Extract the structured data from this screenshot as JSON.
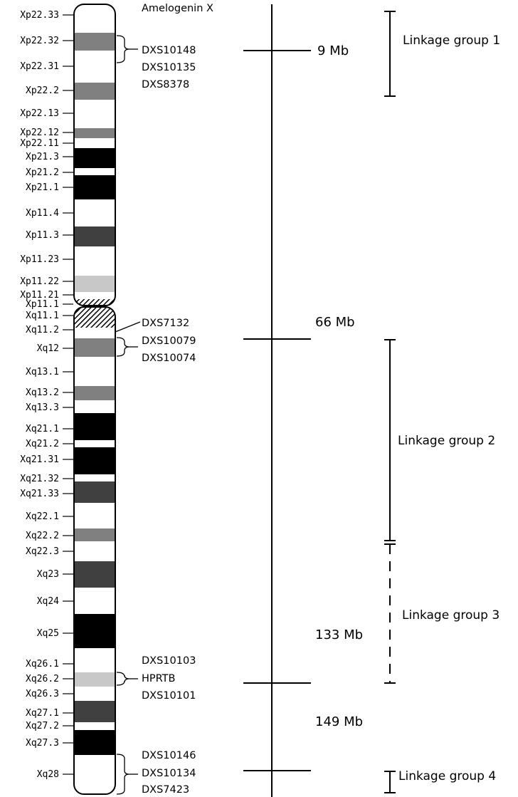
{
  "colors": {
    "white": "#ffffff",
    "gray": "#808080",
    "lightgray": "#c8c8c8",
    "darkgray": "#404040",
    "black": "#000000"
  },
  "chromosome": {
    "bands": [
      {
        "label": "Xp22.33",
        "stain": "white"
      },
      {
        "label": "Xp22.32",
        "stain": "gray"
      },
      {
        "label": "Xp22.31",
        "stain": "white"
      },
      {
        "label": "Xp22.2",
        "stain": "gray"
      },
      {
        "label": "Xp22.13",
        "stain": "white"
      },
      {
        "label": "Xp22.12",
        "stain": "gray"
      },
      {
        "label": "Xp22.11",
        "stain": "white"
      },
      {
        "label": "Xp21.3",
        "stain": "black"
      },
      {
        "label": "Xp21.2",
        "stain": "white"
      },
      {
        "label": "Xp21.1",
        "stain": "black"
      },
      {
        "label": "Xp11.4",
        "stain": "white"
      },
      {
        "label": "Xp11.3",
        "stain": "darkgray"
      },
      {
        "label": "Xp11.23",
        "stain": "white"
      },
      {
        "label": "Xp11.22",
        "stain": "lightgray"
      },
      {
        "label": "Xp11.21",
        "stain": "white"
      },
      {
        "label": "Xp11.1",
        "stain": "hatch"
      },
      {
        "label": "Xq11.1",
        "stain": "hatch"
      },
      {
        "label": "Xq11.2",
        "stain": "white"
      },
      {
        "label": "Xq12",
        "stain": "gray"
      },
      {
        "label": "Xq13.1",
        "stain": "white"
      },
      {
        "label": "Xq13.2",
        "stain": "gray"
      },
      {
        "label": "Xq13.3",
        "stain": "white"
      },
      {
        "label": "Xq21.1",
        "stain": "black"
      },
      {
        "label": "Xq21.2",
        "stain": "white"
      },
      {
        "label": "Xq21.31",
        "stain": "black"
      },
      {
        "label": "Xq21.32",
        "stain": "white"
      },
      {
        "label": "Xq21.33",
        "stain": "darkgray"
      },
      {
        "label": "Xq22.1",
        "stain": "white"
      },
      {
        "label": "Xq22.2",
        "stain": "gray"
      },
      {
        "label": "Xq22.3",
        "stain": "white"
      },
      {
        "label": "Xq23",
        "stain": "darkgray"
      },
      {
        "label": "Xq24",
        "stain": "white"
      },
      {
        "label": "Xq25",
        "stain": "black"
      },
      {
        "label": "Xq26.1",
        "stain": "white"
      },
      {
        "label": "Xq26.2",
        "stain": "lightgray"
      },
      {
        "label": "Xq26.3",
        "stain": "white"
      },
      {
        "label": "Xq27.1",
        "stain": "darkgray"
      },
      {
        "label": "Xq27.2",
        "stain": "white"
      },
      {
        "label": "Xq27.3",
        "stain": "black"
      },
      {
        "label": "Xq28",
        "stain": "white"
      }
    ]
  },
  "markers": [
    {
      "label": "Amelogenin X"
    },
    {
      "label": "DXS10148"
    },
    {
      "label": "DXS10135"
    },
    {
      "label": "DXS8378"
    },
    {
      "label": "DXS7132"
    },
    {
      "label": "DXS10079"
    },
    {
      "label": "DXS10074"
    },
    {
      "label": "DXS10103"
    },
    {
      "label": "HPRTB"
    },
    {
      "label": "DXS10101"
    },
    {
      "label": "DXS10146"
    },
    {
      "label": "DXS10134"
    },
    {
      "label": "DXS7423"
    }
  ],
  "positions": [
    {
      "label": "9 Mb"
    },
    {
      "label": "66 Mb"
    },
    {
      "label": "133 Mb"
    },
    {
      "label": "149 Mb"
    }
  ],
  "linkage_groups": [
    {
      "label": "Linkage group 1",
      "line": "solid"
    },
    {
      "label": "Linkage group 2",
      "line": "solid"
    },
    {
      "label": "Linkage group 3",
      "line": "dashed"
    },
    {
      "label": "Linkage group 4",
      "line": "solid"
    }
  ]
}
